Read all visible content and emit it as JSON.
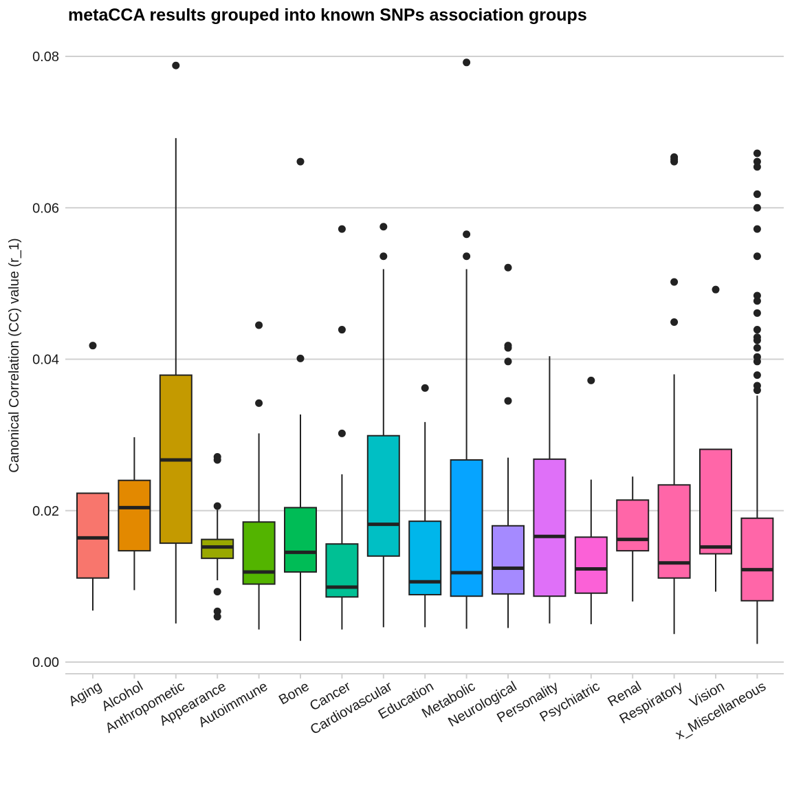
{
  "chart_data": {
    "type": "box",
    "title": "metaCCA results grouped into known SNPs association groups",
    "xlabel": "",
    "ylabel": "Canonical Correlation (CC) value (r_1)",
    "ylim": [
      -0.0016,
      0.0806
    ],
    "yticks": [
      0.0,
      0.02,
      0.04,
      0.06,
      0.08
    ],
    "ytick_labels": [
      "0.00",
      "0.02",
      "0.04",
      "0.06",
      "0.08"
    ],
    "grid": "horizontal",
    "legend": "none",
    "categories": [
      "Aging",
      "Alcohol",
      "Anthropometic",
      "Appearance",
      "Autoimmune",
      "Bone",
      "Cancer",
      "Cardiovascular",
      "Education",
      "Metabolic",
      "Neurological",
      "Personality",
      "Psychiatric",
      "Renal",
      "Respiratory",
      "Vision",
      "x_Miscellaneous"
    ],
    "boxes": [
      {
        "category": "Aging",
        "color": "#F8766D",
        "min": 0.0068,
        "q1": 0.0111,
        "median": 0.0164,
        "q3": 0.0223,
        "max": 0.0223,
        "outliers": [
          0.0418
        ]
      },
      {
        "category": "Alcohol",
        "color": "#E38900",
        "min": 0.0095,
        "q1": 0.0147,
        "median": 0.0204,
        "q3": 0.024,
        "max": 0.0297,
        "outliers": []
      },
      {
        "category": "Anthropometic",
        "color": "#C49A00",
        "min": 0.0051,
        "q1": 0.0157,
        "median": 0.0267,
        "q3": 0.0379,
        "max": 0.0692,
        "outliers": [
          0.0788
        ]
      },
      {
        "category": "Appearance",
        "color": "#99A800",
        "min": 0.0108,
        "q1": 0.0137,
        "median": 0.0152,
        "q3": 0.0162,
        "max": 0.0201,
        "outliers": [
          0.0206,
          0.0267,
          0.0271,
          0.0093,
          0.0067,
          0.006
        ]
      },
      {
        "category": "Autoimmune",
        "color": "#53B400",
        "min": 0.0043,
        "q1": 0.0103,
        "median": 0.0119,
        "q3": 0.0185,
        "max": 0.0302,
        "outliers": [
          0.0342,
          0.0445
        ]
      },
      {
        "category": "Bone",
        "color": "#00BC56",
        "min": 0.0028,
        "q1": 0.0119,
        "median": 0.0145,
        "q3": 0.0204,
        "max": 0.0327,
        "outliers": [
          0.0401,
          0.0661
        ]
      },
      {
        "category": "Cancer",
        "color": "#00C094",
        "min": 0.0043,
        "q1": 0.0086,
        "median": 0.0099,
        "q3": 0.0156,
        "max": 0.0248,
        "outliers": [
          0.0302,
          0.0439,
          0.0572
        ]
      },
      {
        "category": "Cardiovascular",
        "color": "#00BFC4",
        "min": 0.0046,
        "q1": 0.014,
        "median": 0.0182,
        "q3": 0.0299,
        "max": 0.0519,
        "outliers": [
          0.0536,
          0.0575
        ]
      },
      {
        "category": "Education",
        "color": "#00B6EB",
        "min": 0.0046,
        "q1": 0.0089,
        "median": 0.0106,
        "q3": 0.0186,
        "max": 0.0317,
        "outliers": [
          0.0362
        ]
      },
      {
        "category": "Metabolic",
        "color": "#06A4FF",
        "min": 0.0044,
        "q1": 0.0087,
        "median": 0.0118,
        "q3": 0.0267,
        "max": 0.0519,
        "outliers": [
          0.0536,
          0.0565,
          0.0792
        ]
      },
      {
        "category": "Neurological",
        "color": "#A58AFF",
        "min": 0.0045,
        "q1": 0.009,
        "median": 0.0124,
        "q3": 0.018,
        "max": 0.027,
        "outliers": [
          0.0345,
          0.0397,
          0.0415,
          0.0418,
          0.0521
        ]
      },
      {
        "category": "Personality",
        "color": "#DF70F8",
        "min": 0.0051,
        "q1": 0.0087,
        "median": 0.0166,
        "q3": 0.0268,
        "max": 0.0404,
        "outliers": []
      },
      {
        "category": "Psychiatric",
        "color": "#FB61D7",
        "min": 0.005,
        "q1": 0.0091,
        "median": 0.0123,
        "q3": 0.0165,
        "max": 0.0241,
        "outliers": [
          0.0372
        ]
      },
      {
        "category": "Renal",
        "color": "#FF66A8",
        "min": 0.008,
        "q1": 0.0147,
        "median": 0.0162,
        "q3": 0.0214,
        "max": 0.0245,
        "outliers": []
      },
      {
        "category": "Respiratory",
        "color": "#FF66A8",
        "min": 0.0037,
        "q1": 0.0111,
        "median": 0.0131,
        "q3": 0.0234,
        "max": 0.038,
        "outliers": [
          0.0449,
          0.0502,
          0.0661,
          0.0664,
          0.0667
        ]
      },
      {
        "category": "Vision",
        "color": "#FF66A8",
        "min": 0.0093,
        "q1": 0.0143,
        "median": 0.0152,
        "q3": 0.0281,
        "max": 0.0281,
        "outliers": [
          0.0492
        ]
      },
      {
        "category": "x_Miscellaneous",
        "color": "#FF66A8",
        "min": 0.0024,
        "q1": 0.0081,
        "median": 0.0122,
        "q3": 0.019,
        "max": 0.0352,
        "outliers": [
          0.0359,
          0.0365,
          0.0379,
          0.0397,
          0.0403,
          0.0415,
          0.0425,
          0.0429,
          0.0439,
          0.0461,
          0.0477,
          0.0484,
          0.0536,
          0.0572,
          0.06,
          0.0618,
          0.0654,
          0.0661,
          0.0672
        ]
      }
    ],
    "palette": [
      "#F8766D",
      "#E38900",
      "#C49A00",
      "#99A800",
      "#53B400",
      "#00BC56",
      "#00C094",
      "#00BFC4",
      "#00B6EB",
      "#06A4FF",
      "#A58AFF",
      "#DF70F8",
      "#FB61D7",
      "#FF66A8",
      "#FF66A8",
      "#FF66A8",
      "#FF66A8"
    ]
  }
}
